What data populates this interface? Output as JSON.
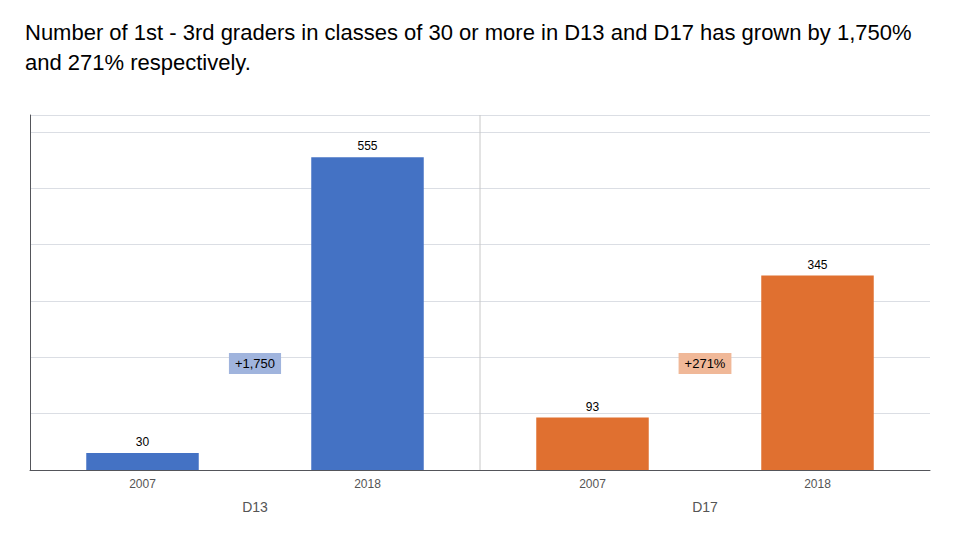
{
  "chart_data": {
    "type": "bar",
    "title": "Number of 1st - 3rd graders in classes of 30 or more in D13 and D17 has grown by 1,750% and 271% respectively.",
    "categories": [
      "2007",
      "2018",
      "2007",
      "2018"
    ],
    "values": [
      30,
      555,
      93,
      345
    ],
    "colors": [
      "#4472c4",
      "#4472c4",
      "#e07030",
      "#e07030"
    ],
    "ylim": [
      0,
      630
    ],
    "yticks": [
      0,
      100,
      200,
      300,
      400,
      500,
      600
    ],
    "grid": true,
    "tick_labels": "x",
    "data_labels": true,
    "annotations": [
      {
        "text": "D13"
      },
      {
        "text": "D17"
      },
      {
        "text": "+1,750",
        "color": "#a0b4dd"
      },
      {
        "text": "+271%",
        "color": "#f0b898"
      }
    ]
  }
}
